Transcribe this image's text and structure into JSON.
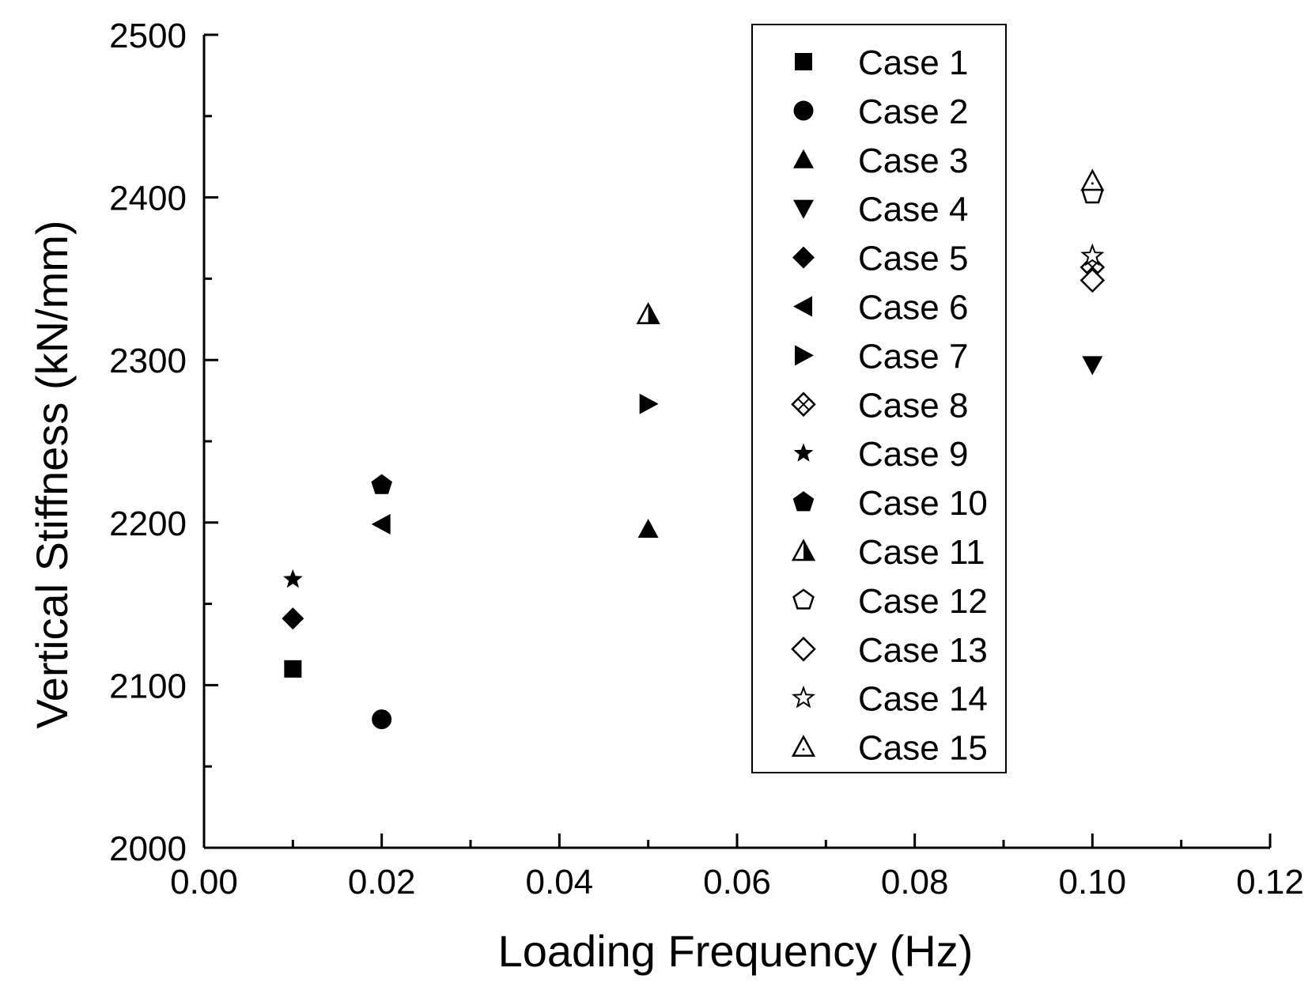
{
  "chart_data": {
    "type": "scatter",
    "title": "",
    "xlabel": "Loading Frequency (Hz)",
    "ylabel": "Vertical Stiffness (kN/mm)",
    "xlim": [
      0.0,
      0.12
    ],
    "ylim": [
      2000,
      2500
    ],
    "x_ticks": [
      "0.00",
      "0.02",
      "0.04",
      "0.06",
      "0.08",
      "0.10",
      "0.12"
    ],
    "y_ticks": [
      "2000",
      "2100",
      "2200",
      "2300",
      "2400",
      "2500"
    ],
    "legend_position": "top-right",
    "grid": false,
    "series": [
      {
        "name": "Case 1",
        "marker": "square",
        "x": 0.01,
        "y": 2110
      },
      {
        "name": "Case 2",
        "marker": "circle",
        "x": 0.02,
        "y": 2079
      },
      {
        "name": "Case 3",
        "marker": "triangle-up",
        "x": 0.05,
        "y": 2196
      },
      {
        "name": "Case 4",
        "marker": "triangle-down",
        "x": 0.1,
        "y": 2297
      },
      {
        "name": "Case 5",
        "marker": "diamond",
        "x": 0.01,
        "y": 2141
      },
      {
        "name": "Case 6",
        "marker": "triangle-left",
        "x": 0.02,
        "y": 2199
      },
      {
        "name": "Case 7",
        "marker": "triangle-right",
        "x": 0.05,
        "y": 2273
      },
      {
        "name": "Case 8",
        "marker": "crossed-diamond",
        "x": 0.1,
        "y": 2357
      },
      {
        "name": "Case 9",
        "marker": "star",
        "x": 0.01,
        "y": 2165
      },
      {
        "name": "Case 10",
        "marker": "pentagon",
        "x": 0.02,
        "y": 2223
      },
      {
        "name": "Case 11",
        "marker": "half-triangle",
        "x": 0.05,
        "y": 2328
      },
      {
        "name": "Case 12",
        "marker": "open-pentagon",
        "x": 0.1,
        "y": 2402
      },
      {
        "name": "Case 13",
        "marker": "open-diamond",
        "x": 0.1,
        "y": 2349
      },
      {
        "name": "Case 14",
        "marker": "open-star",
        "x": 0.1,
        "y": 2364
      },
      {
        "name": "Case 15",
        "marker": "open-triangle",
        "x": 0.1,
        "y": 2410
      }
    ]
  }
}
